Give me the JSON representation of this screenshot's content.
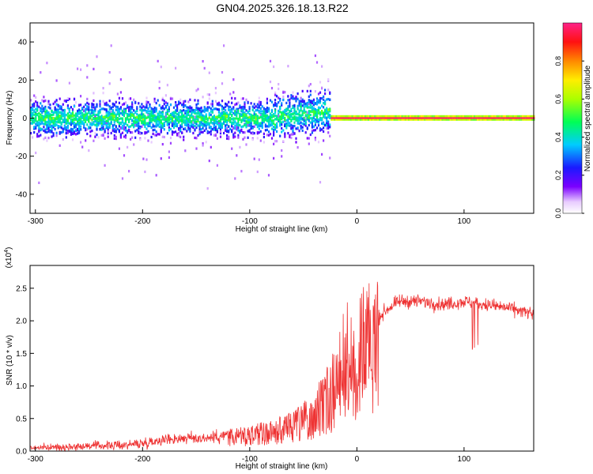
{
  "title": "GN04.2025.326.18.13.R22",
  "chart_data": [
    {
      "type": "heatmap",
      "name": "spectrogram",
      "xlabel": "Height of straight line (km)",
      "ylabel": "Frequency (Hz)",
      "xlim": [
        -305,
        165
      ],
      "ylim": [
        -50,
        50
      ],
      "xticks": [
        -300,
        -200,
        -100,
        0,
        100
      ],
      "xtick_labels": [
        "-300",
        "-200",
        "-100",
        "0",
        "100"
      ],
      "yticks": [
        -40,
        -20,
        0,
        20,
        40
      ],
      "ytick_labels": [
        "-40",
        "-20",
        "0",
        "20",
        "40"
      ],
      "colorbar": {
        "label": "Normalized spectral amplitude",
        "range": [
          0,
          1
        ],
        "ticks": [
          0.0,
          0.2,
          0.4,
          0.6,
          0.8
        ],
        "tick_labels": [
          "0.0",
          "0.2",
          "0.4",
          "0.6",
          "0.8"
        ],
        "colormap": "rainbow (violet to red/pink)"
      },
      "regions": [
        {
          "x_from": -305,
          "x_to": -80,
          "center_freq": 0,
          "spread_hz": 8,
          "amplitude": "0.2-0.5",
          "description": "broadband noisy band"
        },
        {
          "x_from": -80,
          "x_to": -25,
          "center_freq": 4,
          "spread_hz": 10,
          "amplitude": "0.2-0.6",
          "description": "rising noisy band"
        },
        {
          "x_from": -25,
          "x_to": 165,
          "center_freq": 0,
          "spread_hz": 1.5,
          "amplitude": "0.9-1.0",
          "description": "narrow line at 0 Hz"
        }
      ]
    },
    {
      "type": "line",
      "name": "snr",
      "xlabel": "Height of straight line (km)",
      "ylabel": "SNR (10 * v/v)",
      "y_multiplier": "(x10",
      "y_multiplier_exp": "4",
      "y_multiplier_close": ")",
      "xlim": [
        -305,
        165
      ],
      "ylim": [
        0,
        2.85
      ],
      "xticks": [
        -300,
        -200,
        -100,
        0,
        100
      ],
      "xtick_labels": [
        "-300",
        "-200",
        "-100",
        "0",
        "100"
      ],
      "yticks": [
        0.0,
        0.5,
        1.0,
        1.5,
        2.0,
        2.5
      ],
      "ytick_labels": [
        "0.0",
        "0.5",
        "1.0",
        "1.5",
        "2.0",
        "2.5"
      ],
      "series": [
        {
          "name": "SNR",
          "color": "#ee3333",
          "x": [
            -305,
            -280,
            -250,
            -220,
            -200,
            -180,
            -160,
            -140,
            -120,
            -100,
            -80,
            -60,
            -50,
            -40,
            -30,
            -20,
            -15,
            -10,
            0,
            10,
            20,
            30,
            40,
            60,
            80,
            100,
            120,
            140,
            165
          ],
          "y": [
            0.05,
            0.06,
            0.08,
            0.09,
            0.12,
            0.18,
            0.2,
            0.2,
            0.25,
            0.3,
            0.35,
            0.45,
            0.55,
            0.7,
            0.95,
            1.2,
            1.45,
            1.7,
            1.85,
            1.95,
            2.05,
            2.2,
            2.3,
            2.3,
            2.25,
            2.3,
            2.25,
            2.2,
            2.1
          ]
        }
      ]
    }
  ]
}
